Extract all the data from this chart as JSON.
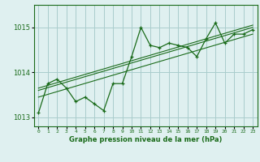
{
  "background_color": "#dff0f0",
  "grid_color": "#aacccc",
  "line_color": "#1a6b1a",
  "title": "Graphe pression niveau de la mer (hPa)",
  "xlim": [
    -0.5,
    23.5
  ],
  "ylim": [
    1012.8,
    1015.5
  ],
  "yticks": [
    1013,
    1014,
    1015
  ],
  "xticks": [
    0,
    1,
    2,
    3,
    4,
    5,
    6,
    7,
    8,
    9,
    10,
    11,
    12,
    13,
    14,
    15,
    16,
    17,
    18,
    19,
    20,
    21,
    22,
    23
  ],
  "series1_x": [
    0,
    1,
    2,
    3,
    4,
    5,
    6,
    7,
    8,
    9,
    10,
    11,
    12,
    13,
    14,
    15,
    16,
    17,
    18,
    19,
    20,
    21,
    22,
    23
  ],
  "series1_y": [
    1013.1,
    1013.75,
    1013.85,
    1013.65,
    1013.35,
    1013.45,
    1013.3,
    1013.15,
    1013.75,
    1013.75,
    1014.35,
    1015.0,
    1014.6,
    1014.55,
    1014.65,
    1014.6,
    1014.55,
    1014.35,
    1014.75,
    1015.1,
    1014.65,
    1014.85,
    1014.85,
    1014.95
  ],
  "trend1_x": [
    0,
    23
  ],
  "trend1_y": [
    1013.45,
    1014.85
  ],
  "trend2_x": [
    0,
    23
  ],
  "trend2_y": [
    1013.6,
    1015.0
  ],
  "trend3_x": [
    0,
    23
  ],
  "trend3_y": [
    1013.65,
    1015.05
  ]
}
